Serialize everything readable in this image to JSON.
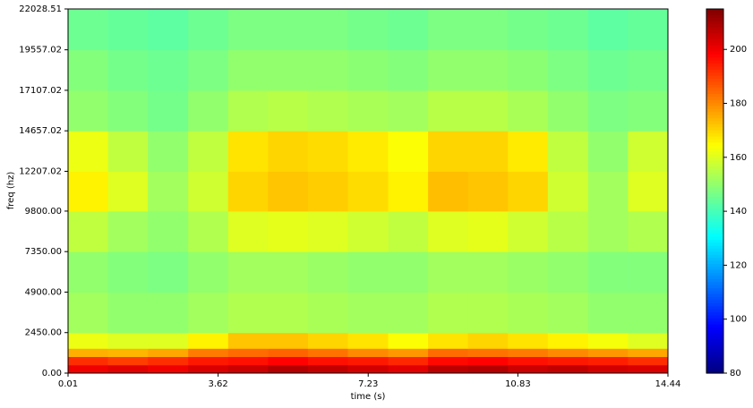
{
  "chart_data": {
    "type": "heatmap",
    "colormap": "jet",
    "x_label": "time (s)",
    "y_label": "freq (hz)",
    "xlim": [
      0.01,
      14.44
    ],
    "xticks": [
      0.01,
      3.62,
      7.23,
      10.83,
      14.44
    ],
    "ylim": [
      0,
      22028.51
    ],
    "yticks": [
      {
        "value": 0,
        "label": "0.00"
      },
      {
        "value": 2450,
        "label": "2450.00"
      },
      {
        "value": 4900,
        "label": "4900.00"
      },
      {
        "value": 7350,
        "label": "7350.00"
      },
      {
        "value": 9800,
        "label": "9800.00"
      },
      12207.02,
      14657.02,
      17107.02,
      19557.02,
      22028.51
    ],
    "x_bins": [
      0.01,
      0.97,
      1.93,
      2.9,
      3.86,
      4.82,
      5.78,
      6.74,
      7.71,
      8.67,
      9.63,
      10.59,
      11.55,
      12.52,
      13.48,
      14.44
    ],
    "y_bins": [
      0,
      500,
      1000,
      1500,
      2450,
      4900,
      7350,
      9800,
      12207.02,
      14657.02,
      17107.02,
      19557.02,
      22028.51
    ],
    "z": [
      [
        200,
        202,
        200,
        203,
        205,
        208,
        206,
        204,
        202,
        207,
        208,
        205,
        206,
        204,
        203
      ],
      [
        192,
        190,
        192,
        195,
        196,
        198,
        196,
        195,
        193,
        197,
        198,
        196,
        195,
        194,
        192
      ],
      [
        175,
        174,
        176,
        182,
        184,
        185,
        183,
        180,
        178,
        184,
        183,
        182,
        180,
        178,
        176
      ],
      [
        162,
        160,
        160,
        166,
        172,
        172,
        170,
        168,
        164,
        168,
        170,
        168,
        166,
        163,
        160
      ],
      [
        152,
        150,
        150,
        152,
        154,
        154,
        153,
        152,
        152,
        154,
        154,
        153,
        152,
        150,
        150
      ],
      [
        150,
        148,
        147,
        150,
        152,
        152,
        151,
        150,
        150,
        152,
        152,
        151,
        150,
        148,
        148
      ],
      [
        156,
        152,
        150,
        154,
        160,
        161,
        160,
        158,
        156,
        160,
        161,
        158,
        155,
        152,
        154
      ],
      [
        166,
        160,
        152,
        158,
        170,
        172,
        171,
        169,
        166,
        173,
        172,
        170,
        158,
        152,
        160
      ],
      [
        162,
        156,
        150,
        156,
        168,
        170,
        169,
        167,
        164,
        170,
        170,
        167,
        156,
        150,
        158
      ],
      [
        150,
        148,
        146,
        150,
        154,
        155,
        154,
        153,
        152,
        155,
        155,
        153,
        150,
        147,
        148
      ],
      [
        148,
        146,
        145,
        147,
        150,
        150,
        150,
        149,
        148,
        150,
        150,
        149,
        147,
        145,
        146
      ],
      [
        145,
        144,
        143,
        145,
        147,
        147,
        147,
        146,
        145,
        147,
        147,
        146,
        145,
        143,
        144
      ]
    ],
    "colorbar": {
      "lim": [
        80,
        215
      ],
      "ticks": [
        80,
        100,
        120,
        140,
        160,
        180,
        200
      ]
    }
  }
}
